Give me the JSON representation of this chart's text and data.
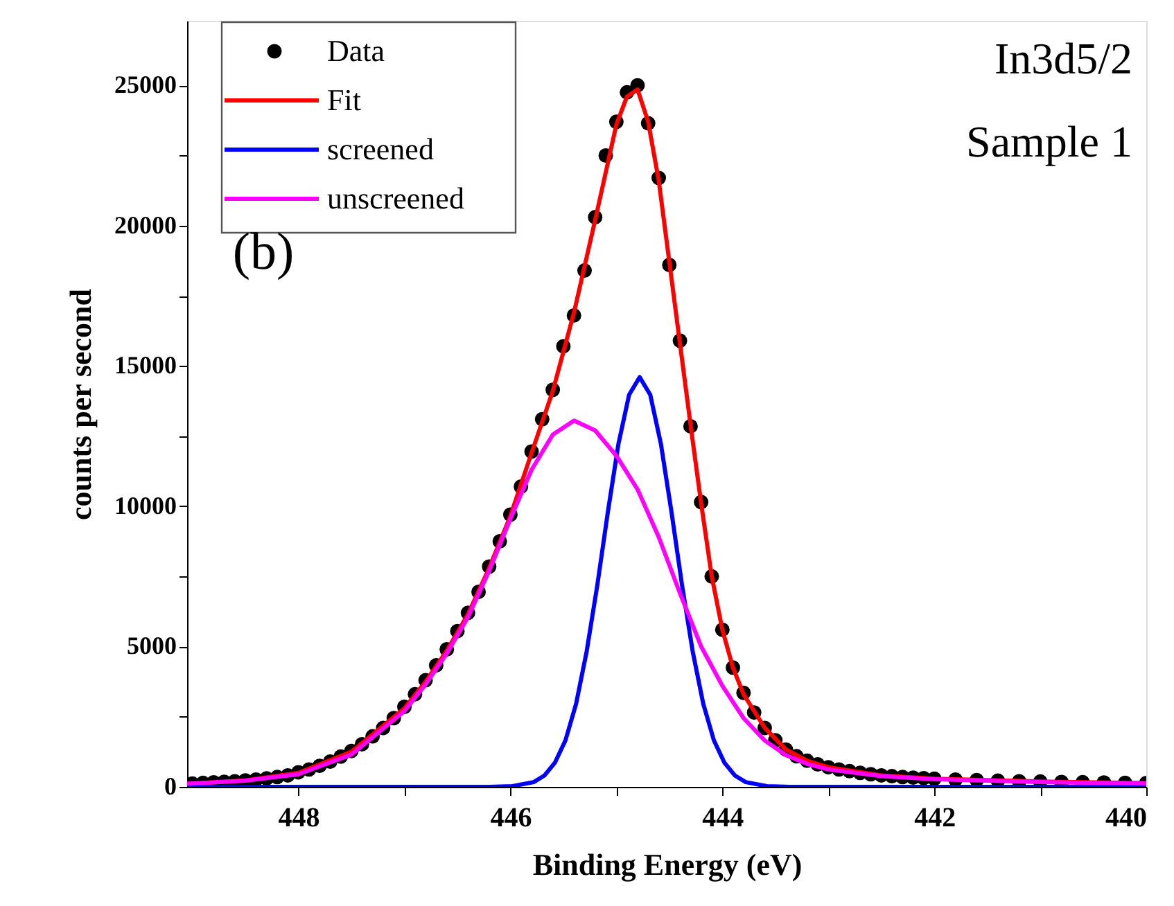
{
  "chart_data": {
    "type": "line",
    "xlabel": "Binding Energy (eV)",
    "ylabel": "counts per second",
    "annotations": [
      "In3d5/2",
      "Sample 1",
      "(b)"
    ],
    "xlim": [
      449.05,
      440
    ],
    "ylim": [
      0,
      27300
    ],
    "xticks": [
      448,
      {
        "value": 447,
        "label": null
      },
      446,
      {
        "value": 445,
        "label": null
      },
      444,
      {
        "value": 443,
        "label": null
      },
      442,
      {
        "value": 441,
        "label": null
      },
      440
    ],
    "yticks": [
      0,
      {
        "value": 2500,
        "label": null
      },
      5000,
      {
        "value": 7500,
        "label": null
      },
      10000,
      {
        "value": 12500,
        "label": null
      },
      15000,
      {
        "value": 17500,
        "label": null
      },
      20000,
      {
        "value": 22500,
        "label": null
      },
      25000
    ],
    "legend": "top left",
    "grid": false,
    "series": [
      {
        "name": "Data",
        "type": "scatter",
        "marker": "circle",
        "color": "#000000",
        "x": [
          449.0,
          448.9,
          448.8,
          448.7,
          448.6,
          448.5,
          448.4,
          448.3,
          448.2,
          448.1,
          448.0,
          447.9,
          447.8,
          447.7,
          447.6,
          447.5,
          447.4,
          447.3,
          447.2,
          447.1,
          447.0,
          446.9,
          446.8,
          446.7,
          446.6,
          446.5,
          446.4,
          446.3,
          446.2,
          446.1,
          446.0,
          445.9,
          445.8,
          445.7,
          445.6,
          445.5,
          445.4,
          445.3,
          445.2,
          445.1,
          445.0,
          444.9,
          444.8,
          444.7,
          444.6,
          444.5,
          444.4,
          444.3,
          444.2,
          444.1,
          444.0,
          443.9,
          443.8,
          443.7,
          443.6,
          443.5,
          443.4,
          443.3,
          443.2,
          443.1,
          443.0,
          442.9,
          442.8,
          442.7,
          442.6,
          442.5,
          442.4,
          442.3,
          442.2,
          442.1,
          442.0,
          441.8,
          441.6,
          441.4,
          441.2,
          441.0,
          440.8,
          440.6,
          440.4,
          440.2,
          440.0
        ],
        "values": [
          120,
          140,
          160,
          180,
          200,
          230,
          260,
          300,
          350,
          410,
          520,
          620,
          750,
          900,
          1080,
          1280,
          1520,
          1800,
          2100,
          2450,
          2850,
          3300,
          3800,
          4330,
          4900,
          5550,
          6200,
          6950,
          7850,
          8750,
          9700,
          10700,
          11950,
          13100,
          14150,
          15700,
          16800,
          18400,
          20300,
          22500,
          23700,
          24750,
          25000,
          23650,
          21700,
          18600,
          15900,
          12850,
          10150,
          7500,
          5600,
          4250,
          3350,
          2650,
          2100,
          1660,
          1330,
          1090,
          930,
          800,
          700,
          620,
          560,
          500,
          450,
          410,
          380,
          350,
          330,
          310,
          290,
          260,
          240,
          220,
          200,
          190,
          175,
          165,
          155,
          145,
          135
        ]
      },
      {
        "name": "Fit",
        "line_style": "solid",
        "color": "#ff0000",
        "x": [
          449.05,
          448.5,
          448.0,
          447.5,
          447.0,
          446.8,
          446.6,
          446.4,
          446.2,
          446.0,
          445.8,
          445.6,
          445.4,
          445.2,
          445.0,
          444.9,
          444.8,
          444.7,
          444.6,
          444.5,
          444.4,
          444.3,
          444.2,
          444.1,
          444.0,
          443.9,
          443.8,
          443.6,
          443.4,
          443.2,
          443.0,
          442.5,
          442.0,
          441.0,
          440.0
        ],
        "values": [
          110,
          230,
          500,
          1250,
          2800,
          3750,
          4850,
          6150,
          7800,
          9650,
          11900,
          14100,
          16900,
          20200,
          23600,
          24600,
          24850,
          23700,
          21600,
          18700,
          15800,
          12900,
          10100,
          7500,
          5600,
          4250,
          3300,
          2100,
          1330,
          930,
          700,
          410,
          290,
          190,
          135
        ]
      },
      {
        "name": "screened",
        "line_style": "solid",
        "color": "#0000ff",
        "x": [
          449.05,
          446.2,
          445.98,
          445.78,
          445.68,
          445.58,
          445.48,
          445.38,
          445.28,
          445.18,
          445.08,
          444.98,
          444.88,
          444.78,
          444.68,
          444.58,
          444.48,
          444.38,
          444.28,
          444.18,
          444.08,
          443.98,
          443.88,
          443.78,
          443.58,
          443.36,
          440.0
        ],
        "values": [
          0,
          0,
          25,
          170,
          400,
          860,
          1660,
          2960,
          4830,
          7180,
          9800,
          12230,
          13970,
          14600,
          13970,
          12230,
          9800,
          7180,
          4830,
          2960,
          1660,
          860,
          400,
          170,
          25,
          0,
          0
        ]
      },
      {
        "name": "unscreened",
        "line_style": "solid",
        "color": "#ff00ff",
        "x": [
          449.05,
          448.5,
          448.0,
          447.5,
          447.0,
          446.8,
          446.6,
          446.4,
          446.2,
          446.0,
          445.8,
          445.6,
          445.4,
          445.2,
          445.0,
          444.8,
          444.6,
          444.4,
          444.2,
          444.0,
          443.8,
          443.6,
          443.4,
          443.2,
          443.0,
          442.5,
          442.0,
          441.0,
          440.0
        ],
        "values": [
          110,
          220,
          450,
          1150,
          2700,
          3650,
          4750,
          6050,
          7700,
          9550,
          11300,
          12550,
          13050,
          12700,
          11800,
          10600,
          8900,
          6900,
          5000,
          3600,
          2450,
          1650,
          1130,
          820,
          620,
          380,
          270,
          170,
          120
        ]
      }
    ]
  }
}
